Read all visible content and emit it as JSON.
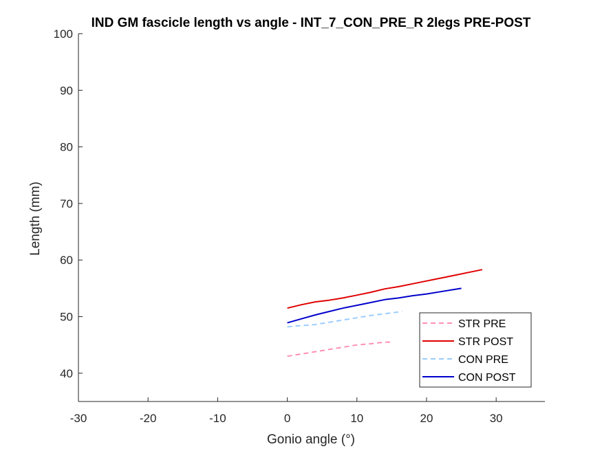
{
  "chart_data": {
    "type": "line",
    "title": "IND GM fascicle length vs angle - INT_7_CON_PRE_R 2legs PRE-POST",
    "xlabel": "Gonio angle (°)",
    "ylabel": "Length (mm)",
    "xlim": [
      -30,
      37
    ],
    "ylim": [
      35,
      100
    ],
    "xticks": [
      -30,
      -20,
      -10,
      0,
      10,
      20,
      30
    ],
    "xtick_labels": [
      "-30",
      "-20",
      "-10",
      "0",
      "10",
      "20",
      "30"
    ],
    "yticks": [
      40,
      50,
      60,
      70,
      80,
      90,
      100
    ],
    "ytick_labels": [
      "40",
      "50",
      "60",
      "70",
      "80",
      "90",
      "100"
    ],
    "grid": false,
    "legend_position": "bottom-right",
    "series": [
      {
        "name": "STR PRE",
        "color": "#ff8fb4",
        "dash": "dashed",
        "x": [
          0,
          2,
          4,
          6,
          8,
          10,
          12,
          14,
          15
        ],
        "y": [
          43.0,
          43.4,
          43.8,
          44.2,
          44.6,
          45.0,
          45.2,
          45.5,
          45.5
        ]
      },
      {
        "name": "STR POST",
        "color": "#e00000",
        "dash": "solid",
        "x": [
          0,
          2,
          4,
          6,
          8,
          10,
          12,
          14,
          16,
          18,
          20,
          22,
          24,
          26,
          28
        ],
        "y": [
          51.5,
          52.1,
          52.6,
          52.9,
          53.3,
          53.8,
          54.3,
          54.9,
          55.3,
          55.8,
          56.3,
          56.8,
          57.3,
          57.8,
          58.3
        ]
      },
      {
        "name": "CON PRE",
        "color": "#99ccff",
        "dash": "dashed",
        "x": [
          0,
          2,
          4,
          6,
          8,
          10,
          12,
          14,
          16.5
        ],
        "y": [
          48.2,
          48.4,
          48.6,
          49.0,
          49.4,
          49.8,
          50.2,
          50.5,
          50.9
        ]
      },
      {
        "name": "CON POST",
        "color": "#0000cc",
        "dash": "solid",
        "x": [
          0,
          2,
          4,
          6,
          8,
          10,
          12,
          14,
          16,
          18,
          20,
          22,
          24,
          25
        ],
        "y": [
          48.9,
          49.6,
          50.3,
          50.9,
          51.5,
          52.0,
          52.5,
          53.0,
          53.3,
          53.7,
          54.0,
          54.4,
          54.8,
          55.0
        ]
      }
    ]
  }
}
